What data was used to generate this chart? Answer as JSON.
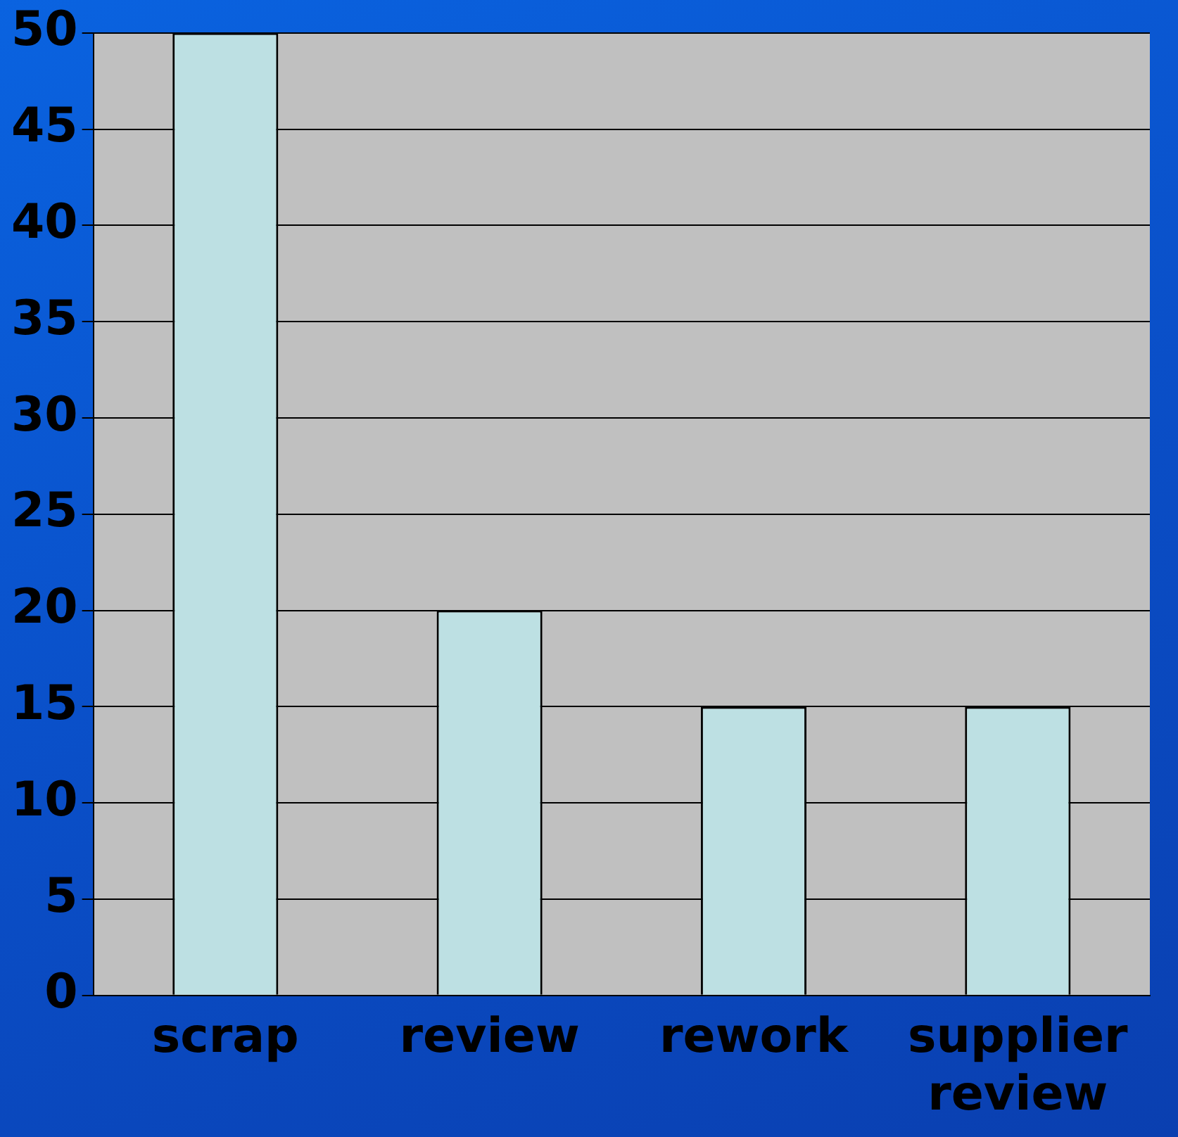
{
  "chart_data": {
    "type": "bar",
    "categories": [
      "scrap",
      "review",
      "rework",
      "supplier review"
    ],
    "values": [
      50,
      20,
      15,
      15
    ],
    "color": "#bde0e3",
    "ylim": [
      0,
      50
    ],
    "yticks": [
      0,
      5,
      10,
      15,
      20,
      25,
      30,
      35,
      40,
      45,
      50
    ],
    "grid": "y"
  }
}
